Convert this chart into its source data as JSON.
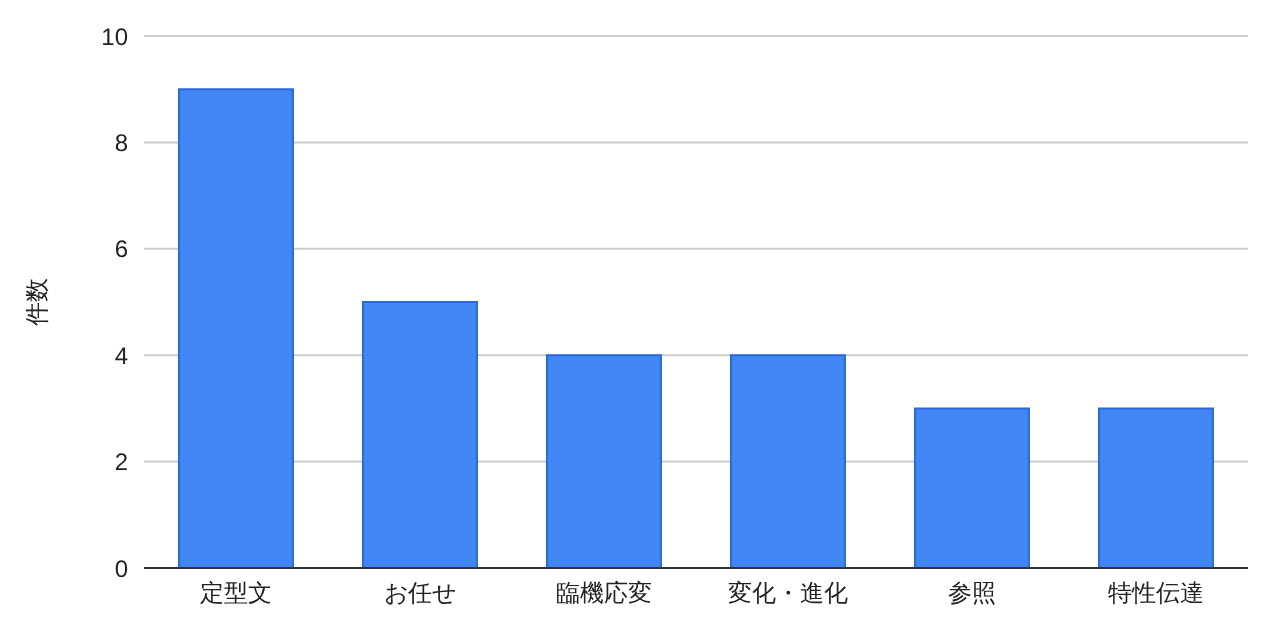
{
  "chart_data": {
    "type": "bar",
    "ylabel": "件数",
    "categories": [
      "定型文",
      "お任せ",
      "臨機応変",
      "変化・進化",
      "参照",
      "特性伝達"
    ],
    "values": [
      9,
      5,
      4,
      4,
      3,
      3
    ],
    "color": "#4285f4",
    "ylim": [
      0,
      10
    ],
    "yticks": [
      0,
      2,
      4,
      6,
      8,
      10
    ],
    "grid": "y"
  }
}
